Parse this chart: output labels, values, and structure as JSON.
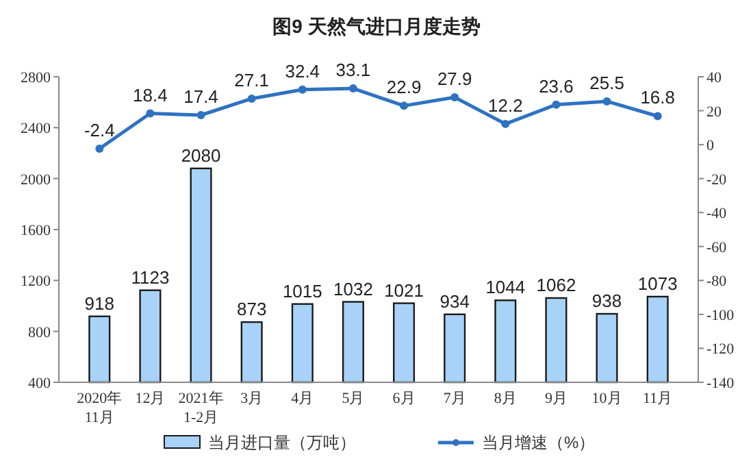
{
  "chart_data": {
    "type": "bar",
    "title": "图9  天然气进口月度走势",
    "categories": [
      "2020年\n11月",
      "12月",
      "2021年\n1-2月",
      "3月",
      "4月",
      "5月",
      "6月",
      "7月",
      "8月",
      "9月",
      "10月",
      "11月"
    ],
    "series": [
      {
        "name": "当月进口量（万吨）",
        "color": "#a8d2f7",
        "values": [
          918,
          1123,
          2080,
          873,
          1015,
          1032,
          1021,
          934,
          1044,
          1062,
          938,
          1073
        ]
      },
      {
        "name": "当月增速（%）",
        "type": "line",
        "axis": "y2",
        "color": "#2e72c2",
        "marker": "circle",
        "values": [
          -2.4,
          18.4,
          17.4,
          27.1,
          32.4,
          33.1,
          22.9,
          27.9,
          12.2,
          23.6,
          25.5,
          16.8
        ]
      }
    ],
    "ylim": [
      400,
      2800
    ],
    "yticks": [
      400,
      800,
      1200,
      1600,
      2000,
      2400,
      2800
    ],
    "y2lim": [
      -140,
      40
    ],
    "y2ticks": [
      -140,
      -120,
      -100,
      -80,
      -60,
      -40,
      -20,
      0,
      20,
      40
    ],
    "data_labels": true,
    "grid": false,
    "legend": "bottom"
  }
}
